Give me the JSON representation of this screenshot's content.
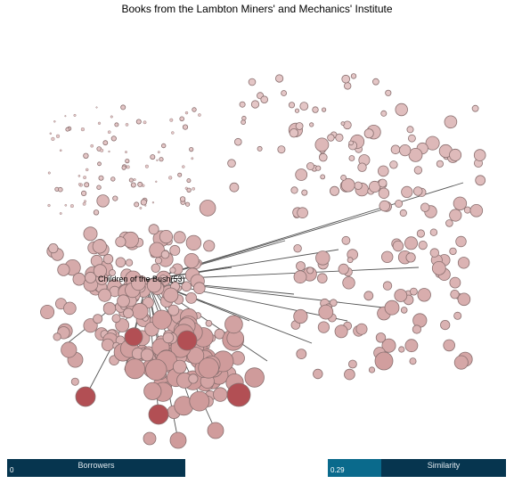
{
  "title": "Books from the Lambton Miners' and Mechanics' Institute",
  "selected_book": {
    "label": "Children of the Bush(53)"
  },
  "colors": {
    "node_light": "#e4c6c6",
    "node_mid": "#cf9b9b",
    "node_dark": "#b24f54",
    "node_stroke": "#8a7070",
    "link": "#555555",
    "slider_bg": "#06354f",
    "slider_fill": "#0a6a8c"
  },
  "sliders": {
    "borrowers": {
      "label": "Borrowers",
      "value": "0"
    },
    "similarity": {
      "label": "Similarity",
      "value": "0.29",
      "fill_fraction": 0.3
    }
  }
}
